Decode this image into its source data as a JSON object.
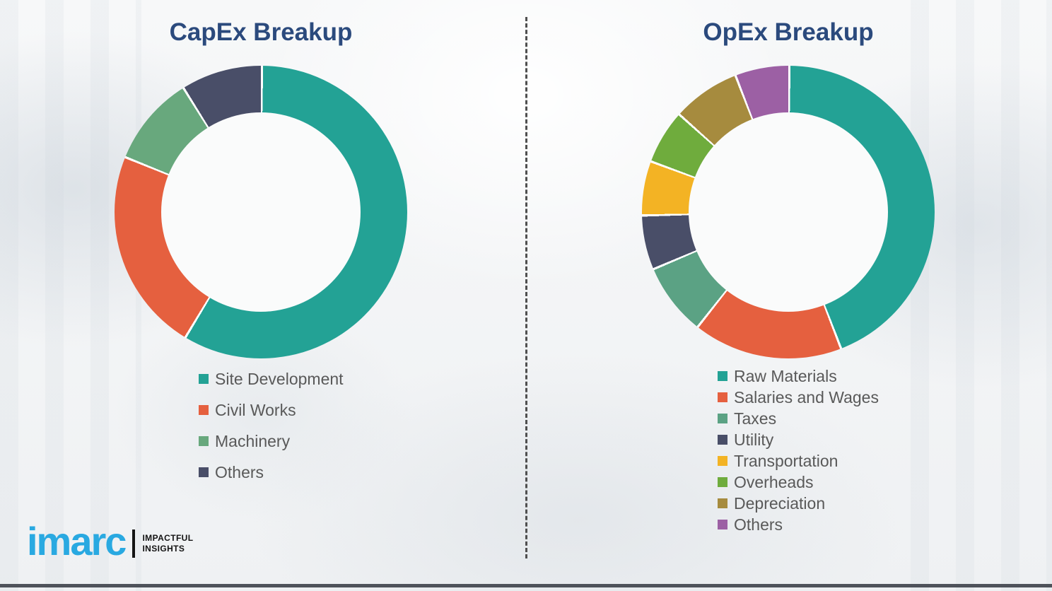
{
  "chart_data": [
    {
      "type": "pie",
      "donut": true,
      "title": "CapEx Breakup",
      "labels": [
        "Site Development",
        "Civil Works",
        "Machinery",
        "Others"
      ],
      "values": [
        58.5,
        22.5,
        10,
        9
      ],
      "colors": [
        "#23A295",
        "#E5603F",
        "#68A87D",
        "#494E68"
      ],
      "legend_position": "below-left",
      "start_angle_deg": 0,
      "direction": "clockwise"
    },
    {
      "type": "pie",
      "donut": true,
      "title": "OpEx Breakup",
      "labels": [
        "Raw Materials",
        "Salaries and Wages",
        "Taxes",
        "Utility",
        "Transportation",
        "Overheads",
        "Depreciation",
        "Others"
      ],
      "values": [
        44,
        16.5,
        8,
        6,
        6,
        6,
        7.5,
        6
      ],
      "colors": [
        "#23A295",
        "#E5603F",
        "#5BA284",
        "#494E68",
        "#F3B324",
        "#6FAC3D",
        "#A68B3E",
        "#9C60A4"
      ],
      "legend_position": "below-left",
      "start_angle_deg": 0,
      "direction": "clockwise"
    }
  ],
  "logo": {
    "brand": "imarc",
    "tagline_line1": "IMPACTFUL",
    "tagline_line2": "INSIGHTS",
    "brand_color": "#29A9E1"
  },
  "style": {
    "title_color": "#2B4A7D",
    "legend_text_color": "#595959",
    "divider_color": "#4F4F4F",
    "background_color": "#F2F3F5"
  }
}
